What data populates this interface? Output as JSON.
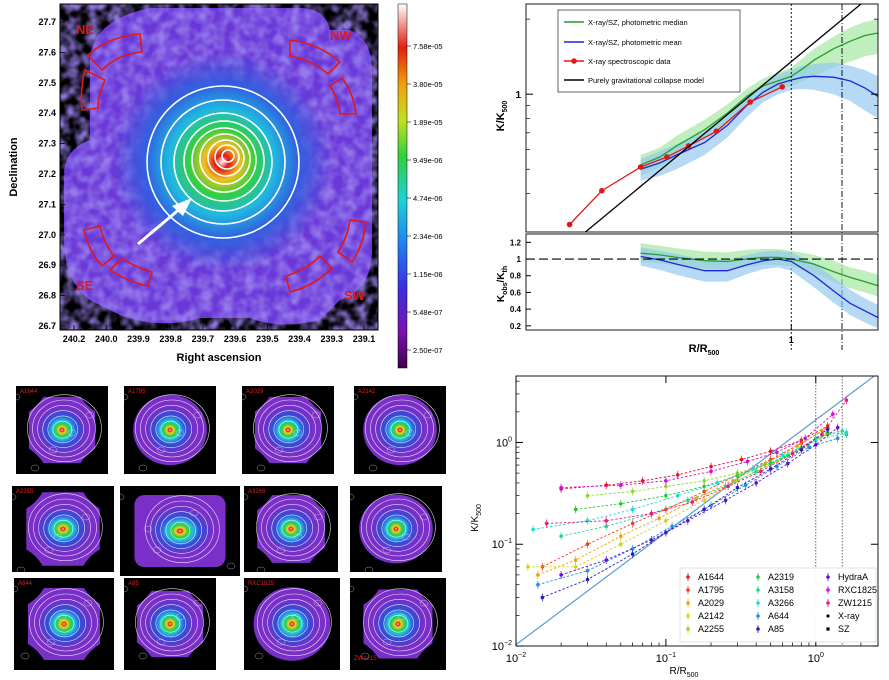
{
  "map_panel": {
    "xlabel": "Right ascension",
    "ylabel": "Declination",
    "x_ticks": [
      "240.2",
      "240.0",
      "239.9",
      "239.8",
      "239.7",
      "239.6",
      "239.5",
      "239.4",
      "239.3",
      "239.1"
    ],
    "y_ticks": [
      "27.7",
      "27.6",
      "27.5",
      "27.4",
      "27.3",
      "27.2",
      "27.1",
      "27.0",
      "26.9",
      "26.8",
      "26.7"
    ],
    "sectors": [
      "NE",
      "NW",
      "SE",
      "SW"
    ],
    "colorbar_ticks": [
      "7.58e-05",
      "3.80e-05",
      "1.89e-05",
      "9.49e-06",
      "4.74e-06",
      "2.34e-06",
      "1.15e-06",
      "5.48e-07",
      "2.50e-07"
    ],
    "colors": {
      "sector": "#e01818",
      "contour": "#ffffff",
      "frame": "#000000"
    }
  },
  "thumb_panel": {
    "labels": [
      "A1644",
      "A1795",
      "A2029",
      "A2142",
      "A2255",
      "A3158",
      "A3266",
      "A644",
      "A85",
      "RXC1825",
      "ZW1215"
    ]
  },
  "chart_data": [
    {
      "type": "line",
      "panel": "profile-top",
      "xlabel": "R/R500",
      "ylabel": "K/K500",
      "x_scale": "log",
      "y_scale": "log",
      "xlim": [
        0.12,
        2.0
      ],
      "ylim": [
        0.28,
        2.3
      ],
      "x_tick_labels": [
        {
          "v": 1,
          "t": "1"
        }
      ],
      "y_tick_labels": [
        {
          "v": 1,
          "t": "1"
        }
      ],
      "vlines": [
        {
          "x": 1.0,
          "style": "dotted"
        },
        {
          "x": 1.5,
          "style": "dashdot"
        }
      ],
      "legend_position": "upper-left",
      "legend": [
        "X-ray/SZ, photometric median",
        "X-ray/SZ, photometric mean",
        "X-ray spectroscopic data",
        "Purely gravitational collapse model"
      ],
      "series": [
        {
          "name": "X-ray/SZ, photometric median",
          "color": "#22a02a",
          "band_color": "#9ee59c",
          "x": [
            0.3,
            0.35,
            0.4,
            0.5,
            0.6,
            0.7,
            0.8,
            0.9,
            1.0,
            1.1,
            1.2,
            1.4,
            1.6,
            1.8,
            2.0
          ],
          "y": [
            0.52,
            0.56,
            0.62,
            0.72,
            0.84,
            0.98,
            1.08,
            1.13,
            1.18,
            1.27,
            1.37,
            1.52,
            1.63,
            1.72,
            1.76
          ],
          "band_lo": [
            0.47,
            0.51,
            0.56,
            0.66,
            0.77,
            0.9,
            1.0,
            1.05,
            1.08,
            1.13,
            1.18,
            1.28,
            1.35,
            1.42,
            1.45
          ],
          "band_hi": [
            0.57,
            0.61,
            0.68,
            0.79,
            0.91,
            1.05,
            1.16,
            1.22,
            1.28,
            1.4,
            1.52,
            1.7,
            1.85,
            1.95,
            2.0
          ]
        },
        {
          "name": "X-ray/SZ, photometric mean",
          "color": "#1a2ad8",
          "band_color": "#8fc6f0",
          "x": [
            0.3,
            0.35,
            0.4,
            0.5,
            0.6,
            0.7,
            0.8,
            0.9,
            1.0,
            1.1,
            1.2,
            1.4,
            1.6,
            1.8,
            2.0
          ],
          "y": [
            0.5,
            0.53,
            0.57,
            0.64,
            0.75,
            0.9,
            1.02,
            1.1,
            1.14,
            1.17,
            1.18,
            1.17,
            1.13,
            1.06,
            0.98
          ],
          "band_lo": [
            0.45,
            0.47,
            0.5,
            0.57,
            0.67,
            0.81,
            0.93,
            1.0,
            1.04,
            1.05,
            1.04,
            1.0,
            0.94,
            0.86,
            0.8
          ],
          "band_hi": [
            0.55,
            0.59,
            0.63,
            0.71,
            0.83,
            0.99,
            1.11,
            1.2,
            1.25,
            1.3,
            1.32,
            1.34,
            1.3,
            1.25,
            1.18
          ]
        },
        {
          "name": "X-ray spectroscopic data",
          "color": "#e01818",
          "x": [
            0.17,
            0.22,
            0.3,
            0.37,
            0.44,
            0.55,
            0.72,
            0.93
          ],
          "y": [
            0.3,
            0.41,
            0.51,
            0.56,
            0.62,
            0.71,
            0.93,
            1.07
          ]
        },
        {
          "name": "Purely gravitational collapse model",
          "color": "#000000",
          "x": [
            0.15,
            2.0
          ],
          "y": [
            0.22,
            2.62
          ]
        }
      ]
    },
    {
      "type": "line",
      "panel": "profile-ratio",
      "xlabel": "R/R500",
      "ylabel": "Kobs/Kth",
      "x_scale": "log",
      "xlim": [
        0.12,
        2.0
      ],
      "ylim": [
        0.15,
        1.3
      ],
      "x_tick_labels": [
        {
          "v": 1,
          "t": "1"
        }
      ],
      "y_tick_labels": [
        {
          "v": 1.2,
          "t": "1.2"
        },
        {
          "v": 1.0,
          "t": "1"
        },
        {
          "v": 0.8,
          "t": "0.8"
        },
        {
          "v": 0.6,
          "t": "0.6"
        },
        {
          "v": 0.4,
          "t": "0.4"
        },
        {
          "v": 0.2,
          "t": "0.2"
        }
      ],
      "hline": 1.0,
      "series": [
        {
          "name": "median",
          "color": "#22a02a",
          "band_color": "#9ee59c",
          "x": [
            0.3,
            0.35,
            0.4,
            0.5,
            0.6,
            0.7,
            0.8,
            0.9,
            1.0,
            1.2,
            1.4,
            1.6,
            1.8,
            2.0
          ],
          "y": [
            1.07,
            1.05,
            1.02,
            0.98,
            0.97,
            1.0,
            1.02,
            1.02,
            1.0,
            0.94,
            0.85,
            0.78,
            0.73,
            0.68
          ],
          "band_lo": [
            0.96,
            0.95,
            0.92,
            0.88,
            0.87,
            0.9,
            0.93,
            0.93,
            0.91,
            0.83,
            0.73,
            0.65,
            0.6,
            0.55
          ],
          "band_hi": [
            1.19,
            1.16,
            1.13,
            1.09,
            1.08,
            1.11,
            1.12,
            1.12,
            1.1,
            1.05,
            0.98,
            0.9,
            0.86,
            0.81
          ]
        },
        {
          "name": "mean",
          "color": "#1a2ad8",
          "band_color": "#8fc6f0",
          "x": [
            0.3,
            0.35,
            0.4,
            0.5,
            0.6,
            0.7,
            0.8,
            0.9,
            1.0,
            1.2,
            1.4,
            1.6,
            1.8,
            2.0
          ],
          "y": [
            1.03,
            0.99,
            0.94,
            0.86,
            0.86,
            0.93,
            0.98,
            1.0,
            0.97,
            0.8,
            0.62,
            0.47,
            0.38,
            0.3
          ],
          "band_lo": [
            0.92,
            0.87,
            0.81,
            0.73,
            0.73,
            0.82,
            0.88,
            0.9,
            0.86,
            0.66,
            0.48,
            0.33,
            0.24,
            0.17
          ],
          "band_hi": [
            1.14,
            1.1,
            1.06,
            0.99,
            0.99,
            1.05,
            1.09,
            1.1,
            1.08,
            0.95,
            0.78,
            0.63,
            0.53,
            0.45
          ]
        }
      ]
    },
    {
      "type": "scatter",
      "panel": "cluster-profiles",
      "xlabel": "R/R500",
      "ylabel": "K/K500",
      "x_scale": "log",
      "y_scale": "log",
      "xlim": [
        0.01,
        2.6
      ],
      "ylim": [
        0.01,
        4.5
      ],
      "x_tick_labels": [
        {
          "v": 0.01,
          "t": "10−2"
        },
        {
          "v": 0.1,
          "t": "10−1"
        },
        {
          "v": 1,
          "t": "100"
        }
      ],
      "y_tick_labels": [
        {
          "v": 0.01,
          "t": "10−2"
        },
        {
          "v": 0.1,
          "t": "10−1"
        },
        {
          "v": 1,
          "t": "100"
        }
      ],
      "vlines": [
        {
          "x": 1.0,
          "style": "dotted"
        },
        {
          "x": 1.5,
          "style": "dotted"
        }
      ],
      "reference_line": {
        "color": "#5a9bd4",
        "x": [
          0.01,
          2.6
        ],
        "y": [
          0.0103,
          4.79
        ]
      },
      "legend_position": "lower-right",
      "legend": [
        "A1644",
        "A1795",
        "A2029",
        "A2142",
        "A2255",
        "A2319",
        "A3158",
        "A3266",
        "A644",
        "A85",
        "HydraA",
        "RXC1825",
        "ZW1215",
        "X-ray",
        "SZ"
      ],
      "series": [
        {
          "name": "A1644",
          "color": "#e8102a",
          "x": [
            0.02,
            0.04,
            0.07,
            0.12,
            0.2,
            0.32,
            0.5,
            0.8,
            1.2
          ],
          "y": [
            0.35,
            0.38,
            0.42,
            0.48,
            0.58,
            0.68,
            0.82,
            1.05,
            1.45
          ]
        },
        {
          "name": "A1795",
          "color": "#f04020",
          "x": [
            0.015,
            0.03,
            0.06,
            0.1,
            0.18,
            0.3,
            0.5,
            0.8,
            1.2
          ],
          "y": [
            0.06,
            0.1,
            0.16,
            0.22,
            0.33,
            0.48,
            0.68,
            0.98,
            1.4
          ]
        },
        {
          "name": "A2029",
          "color": "#f0a010",
          "x": [
            0.014,
            0.025,
            0.05,
            0.09,
            0.16,
            0.28,
            0.46,
            0.75,
            1.1
          ],
          "y": [
            0.05,
            0.07,
            0.12,
            0.18,
            0.28,
            0.42,
            0.62,
            0.92,
            1.3
          ]
        },
        {
          "name": "A2142",
          "color": "#d8d010",
          "x": [
            0.012,
            0.025,
            0.05,
            0.1,
            0.18,
            0.3,
            0.5,
            0.8,
            1.2
          ],
          "y": [
            0.06,
            0.06,
            0.1,
            0.17,
            0.27,
            0.42,
            0.6,
            0.9,
            1.2
          ]
        },
        {
          "name": "A2255",
          "color": "#90d820",
          "x": [
            0.03,
            0.06,
            0.1,
            0.18,
            0.3,
            0.5,
            0.8,
            1.2
          ],
          "y": [
            0.3,
            0.33,
            0.37,
            0.42,
            0.5,
            0.62,
            0.85,
            1.25
          ]
        },
        {
          "name": "A2319",
          "color": "#28c838",
          "x": [
            0.025,
            0.05,
            0.1,
            0.18,
            0.3,
            0.5,
            0.8,
            1.2,
            1.6
          ],
          "y": [
            0.22,
            0.25,
            0.3,
            0.37,
            0.47,
            0.63,
            0.88,
            1.25,
            1.2
          ]
        },
        {
          "name": "A3158",
          "color": "#20d890",
          "x": [
            0.02,
            0.04,
            0.08,
            0.14,
            0.25,
            0.4,
            0.65,
            1.0,
            1.5
          ],
          "y": [
            0.12,
            0.15,
            0.2,
            0.27,
            0.37,
            0.52,
            0.75,
            1.1,
            1.3
          ]
        },
        {
          "name": "A3266",
          "color": "#20d8d8",
          "x": [
            0.013,
            0.03,
            0.06,
            0.12,
            0.22,
            0.38,
            0.6,
            1.0,
            1.6
          ],
          "y": [
            0.14,
            0.17,
            0.22,
            0.3,
            0.4,
            0.55,
            0.75,
            1.05,
            1.25
          ]
        },
        {
          "name": "A644",
          "color": "#2090e0",
          "x": [
            0.014,
            0.03,
            0.06,
            0.11,
            0.2,
            0.34,
            0.55,
            0.9,
            1.4
          ],
          "y": [
            0.04,
            0.055,
            0.09,
            0.15,
            0.24,
            0.38,
            0.58,
            0.9,
            1.1
          ]
        },
        {
          "name": "A85",
          "color": "#2020c0",
          "x": [
            0.015,
            0.03,
            0.06,
            0.1,
            0.18,
            0.3,
            0.5,
            0.8,
            1.2
          ],
          "y": [
            0.03,
            0.045,
            0.08,
            0.13,
            0.22,
            0.36,
            0.55,
            0.85,
            1.35
          ]
        },
        {
          "name": "HydraA",
          "color": "#6010d0",
          "x": [
            0.02,
            0.04,
            0.08,
            0.14,
            0.25,
            0.4,
            0.65,
            1.0,
            1.4
          ],
          "y": [
            0.05,
            0.07,
            0.11,
            0.17,
            0.27,
            0.4,
            0.62,
            0.95,
            1.4
          ]
        },
        {
          "name": "RXC1825",
          "color": "#d010d0",
          "x": [
            0.02,
            0.05,
            0.1,
            0.2,
            0.35,
            0.55,
            0.85,
            1.3
          ],
          "y": [
            0.36,
            0.38,
            0.42,
            0.52,
            0.65,
            0.8,
            1.1,
            1.9
          ]
        },
        {
          "name": "ZW1215",
          "color": "#f01880",
          "x": [
            0.016,
            0.04,
            0.08,
            0.15,
            0.26,
            0.43,
            0.7,
            1.1,
            1.6
          ],
          "y": [
            0.16,
            0.17,
            0.2,
            0.26,
            0.37,
            0.52,
            0.78,
            1.2,
            2.6
          ]
        }
      ]
    }
  ]
}
